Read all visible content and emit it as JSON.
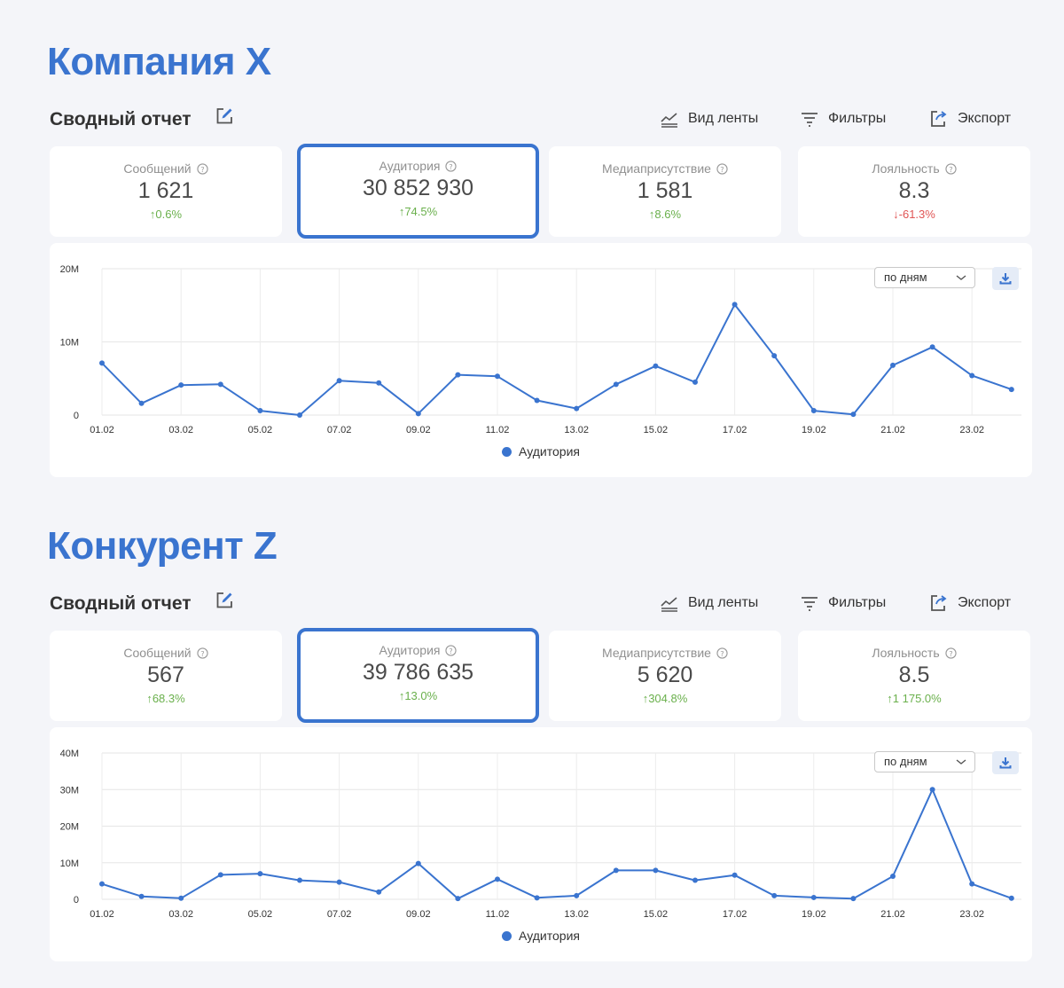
{
  "colors": {
    "accent": "#3a74cf",
    "up": "#6ab04c",
    "down": "#e05555"
  },
  "report_title": "Сводный отчет",
  "toolbar": {
    "view": "Вид ленты",
    "filters": "Фильтры",
    "export": "Экспорт"
  },
  "dropdown_value": "по дням",
  "legend_label": "Аудитория",
  "sections": [
    {
      "title": "Компания X",
      "stats": [
        {
          "label": "Сообщений",
          "value": "1 621",
          "change": "↑0.6%",
          "trend": "up"
        },
        {
          "label": "Аудитория",
          "value": "30 852 930",
          "change": "↑74.5%",
          "trend": "up",
          "active": true
        },
        {
          "label": "Медиаприсутствие",
          "value": "1 581",
          "change": "↑8.6%",
          "trend": "up"
        },
        {
          "label": "Лояльность",
          "value": "8.3",
          "change": "↓-61.3%",
          "trend": "down"
        }
      ]
    },
    {
      "title": "Конкурент Z",
      "stats": [
        {
          "label": "Сообщений",
          "value": "567",
          "change": "↑68.3%",
          "trend": "up"
        },
        {
          "label": "Аудитория",
          "value": "39 786 635",
          "change": "↑13.0%",
          "trend": "up",
          "active": true
        },
        {
          "label": "Медиаприсутствие",
          "value": "5 620",
          "change": "↑304.8%",
          "trend": "up"
        },
        {
          "label": "Лояльность",
          "value": "8.5",
          "change": "↑1 175.0%",
          "trend": "up"
        }
      ]
    }
  ],
  "chart_data": [
    {
      "type": "line",
      "x": [
        "01.02",
        "02.02",
        "03.02",
        "04.02",
        "05.02",
        "06.02",
        "07.02",
        "08.02",
        "09.02",
        "10.02",
        "11.02",
        "12.02",
        "13.02",
        "14.02",
        "15.02",
        "16.02",
        "17.02",
        "18.02",
        "19.02",
        "20.02",
        "21.02",
        "22.02",
        "23.02",
        "24.02"
      ],
      "x_tick_labels": [
        "01.02",
        "03.02",
        "05.02",
        "07.02",
        "09.02",
        "11.02",
        "13.02",
        "15.02",
        "17.02",
        "19.02",
        "21.02",
        "23.02"
      ],
      "series": [
        {
          "name": "Аудитория",
          "values": [
            7.1,
            1.6,
            4.1,
            4.2,
            0.6,
            0.0,
            4.7,
            4.4,
            0.2,
            5.5,
            5.3,
            2.0,
            0.9,
            4.2,
            6.7,
            4.5,
            15.1,
            8.1,
            0.6,
            0.1,
            6.8,
            9.3,
            5.4,
            3.5
          ]
        }
      ],
      "ylim": [
        0,
        20
      ],
      "y_ticks": [
        0,
        10,
        20
      ],
      "y_tick_labels": [
        "0",
        "10M",
        "20M"
      ],
      "grid": true,
      "legend": "bottom-center"
    },
    {
      "type": "line",
      "x": [
        "01.02",
        "02.02",
        "03.02",
        "04.02",
        "05.02",
        "06.02",
        "07.02",
        "08.02",
        "09.02",
        "10.02",
        "11.02",
        "12.02",
        "13.02",
        "14.02",
        "15.02",
        "16.02",
        "17.02",
        "18.02",
        "19.02",
        "20.02",
        "21.02",
        "22.02",
        "23.02",
        "24.02"
      ],
      "x_tick_labels": [
        "01.02",
        "03.02",
        "05.02",
        "07.02",
        "09.02",
        "11.02",
        "13.02",
        "15.02",
        "17.02",
        "19.02",
        "21.02",
        "23.02"
      ],
      "series": [
        {
          "name": "Аудитория",
          "values": [
            4.2,
            0.8,
            0.3,
            6.7,
            7.0,
            5.2,
            4.7,
            2.0,
            9.8,
            0.2,
            5.5,
            0.4,
            1.0,
            7.9,
            7.9,
            5.2,
            6.6,
            1.0,
            0.5,
            0.2,
            6.3,
            30.0,
            4.2,
            0.3
          ]
        }
      ],
      "ylim": [
        0,
        40
      ],
      "y_ticks": [
        0,
        10,
        20,
        30,
        40
      ],
      "y_tick_labels": [
        "0",
        "10M",
        "20M",
        "30M",
        "40M"
      ],
      "grid": true,
      "legend": "bottom-center"
    }
  ]
}
